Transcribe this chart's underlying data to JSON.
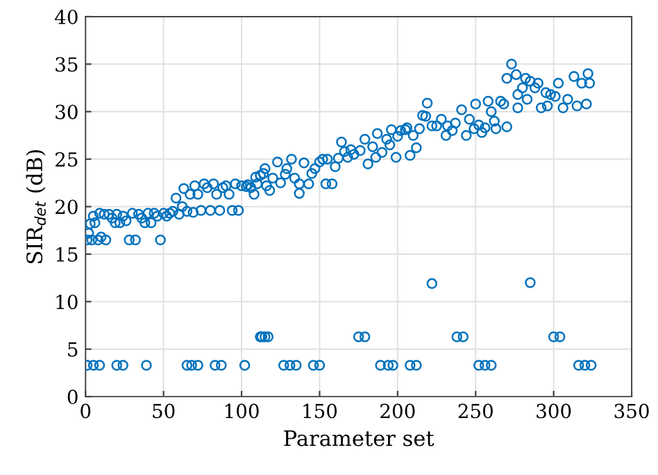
{
  "chart_data": {
    "type": "scatter",
    "xlabel": "Parameter set",
    "ylabel": "SIR$_{det}$ (dB)",
    "xlim": [
      0,
      350
    ],
    "xticks": [
      0,
      50,
      100,
      150,
      200,
      250,
      300,
      350
    ],
    "ylim": [
      0,
      40
    ],
    "yticks": [
      0,
      5,
      10,
      15,
      20,
      25,
      30,
      35,
      40
    ],
    "grid": true,
    "marker": "circle",
    "series": [
      {
        "color": "#0072bd",
        "x": [
          1,
          2,
          3,
          4,
          5,
          6,
          8,
          9,
          10,
          12,
          13,
          15,
          17,
          19,
          20,
          22,
          24,
          26,
          28,
          30,
          32,
          34,
          36,
          38,
          40,
          42,
          44,
          46,
          48,
          50,
          52,
          54,
          56,
          58,
          60,
          62,
          63,
          65,
          67,
          69,
          70,
          72,
          74,
          76,
          78,
          80,
          82,
          84,
          86,
          88,
          90,
          92,
          94,
          96,
          98,
          100,
          103,
          104,
          106,
          108,
          109,
          110,
          112,
          114,
          115,
          116,
          118,
          120,
          123,
          125,
          128,
          129,
          132,
          134,
          137,
          137,
          140,
          143,
          145,
          147,
          150,
          152,
          154,
          155,
          158,
          160,
          162,
          164,
          166,
          168,
          170,
          172,
          176,
          179,
          181,
          184,
          186,
          187,
          190,
          193,
          195,
          196,
          199,
          200,
          202,
          205,
          206,
          208,
          210,
          212,
          214,
          216,
          218,
          219,
          222,
          225,
          228,
          231,
          232,
          235,
          237,
          241,
          244,
          246,
          249,
          250,
          252,
          254,
          256,
          258,
          260,
          262,
          263,
          266,
          268,
          270,
          270,
          273,
          276,
          277,
          277,
          280,
          282,
          283,
          285,
          288,
          290,
          292,
          295,
          296,
          298,
          301,
          303,
          306,
          309,
          313,
          315,
          318,
          321,
          322,
          323,
          1,
          5,
          9,
          20,
          24,
          39,
          65,
          68,
          72,
          83,
          87,
          102,
          127,
          131,
          135,
          146,
          150,
          189,
          194,
          197,
          208,
          212,
          252,
          256,
          260,
          316,
          320,
          324,
          112,
          115,
          113,
          117,
          175,
          179,
          238,
          242,
          300,
          304,
          222,
          285
        ],
        "values": [
          16.5,
          17.2,
          18.2,
          16.5,
          19,
          18.3,
          16.5,
          19.3,
          16.8,
          19.2,
          16.5,
          19.2,
          18.8,
          18.3,
          19.2,
          18.3,
          19,
          18.5,
          16.5,
          19.3,
          16.5,
          19.2,
          18.8,
          18.3,
          19.3,
          18.3,
          19.3,
          19,
          16.5,
          19.3,
          19,
          19.3,
          19.5,
          20.9,
          19.2,
          20,
          21.9,
          19.5,
          21.3,
          19.4,
          22.2,
          21.3,
          19.6,
          22.4,
          22,
          19.6,
          22.4,
          21.3,
          19.6,
          22,
          22.2,
          21.3,
          19.6,
          22.4,
          19.6,
          22.2,
          22.1,
          22.3,
          22,
          21.3,
          23.1,
          22.4,
          23.3,
          23.5,
          24,
          22.2,
          21.7,
          23,
          24.7,
          22.5,
          23.4,
          24,
          25,
          23,
          21.4,
          22.4,
          24.6,
          22.4,
          23.5,
          24,
          24.7,
          25,
          22.4,
          25,
          22.4,
          24.2,
          25.1,
          26.8,
          25.8,
          25.2,
          26,
          25.5,
          25.9,
          27.1,
          24.5,
          26.3,
          25.2,
          27.7,
          25.7,
          27.1,
          26.5,
          28.1,
          25.2,
          27.4,
          28,
          28.1,
          28.3,
          25.4,
          27.5,
          26.2,
          28.2,
          29.6,
          29.5,
          30.9,
          28.5,
          28.5,
          29.2,
          27.5,
          28.5,
          28,
          28.8,
          30.2,
          27.5,
          29.2,
          28.2,
          30.8,
          28.6,
          27.8,
          28.3,
          31.1,
          30,
          29,
          28.2,
          31.1,
          30.8,
          28.4,
          33.5,
          35,
          33.9,
          31.8,
          30.4,
          32.5,
          33.5,
          31.3,
          33.2,
          32.5,
          33,
          30.4,
          32,
          30.6,
          31.8,
          31.6,
          33,
          30.4,
          31.3,
          33.7,
          30.6,
          33,
          30.8,
          34,
          33,
          3.3,
          3.3,
          3.3,
          3.3,
          3.3,
          3.3,
          3.3,
          3.3,
          3.3,
          3.3,
          3.3,
          3.3,
          3.3,
          3.3,
          3.3,
          3.3,
          3.3,
          3.3,
          3.3,
          3.3,
          3.3,
          3.3,
          3.3,
          3.3,
          3.3,
          3.3,
          3.3,
          3.3,
          6.3,
          6.3,
          6.3,
          6.3,
          6.3,
          6.3,
          6.3,
          6.3,
          6.3,
          6.3,
          11.9,
          12
        ]
      }
    ]
  }
}
